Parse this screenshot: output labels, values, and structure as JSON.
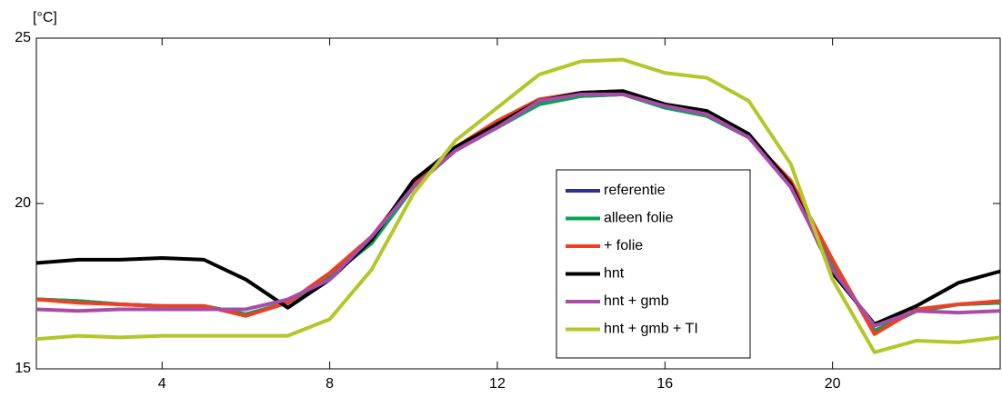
{
  "chart_data": {
    "type": "line",
    "y_label": "[°C]",
    "x": [
      1,
      2,
      3,
      4,
      5,
      6,
      7,
      8,
      9,
      10,
      11,
      12,
      13,
      14,
      15,
      16,
      17,
      18,
      19,
      20,
      21,
      22,
      23,
      24
    ],
    "xlim": [
      1,
      24
    ],
    "xticks": [
      4,
      8,
      12,
      16,
      20
    ],
    "ylim": [
      15,
      25
    ],
    "yticks": [
      15,
      20,
      25
    ],
    "grid": false,
    "legend": "lower-center",
    "series": [
      {
        "name": "referentie",
        "color": "#2e3192",
        "values": [
          17.1,
          17.05,
          16.95,
          16.9,
          16.9,
          16.65,
          17.0,
          17.8,
          18.8,
          20.5,
          21.6,
          22.3,
          23.0,
          23.25,
          23.3,
          22.9,
          22.65,
          22.0,
          20.6,
          18.2,
          16.15,
          16.75,
          16.95,
          17.0
        ]
      },
      {
        "name": "alleen folie",
        "color": "#00a651",
        "values": [
          17.1,
          17.05,
          16.95,
          16.9,
          16.9,
          16.65,
          17.0,
          17.8,
          18.8,
          20.5,
          21.6,
          22.3,
          23.0,
          23.25,
          23.3,
          22.9,
          22.65,
          22.0,
          20.6,
          18.2,
          16.15,
          16.75,
          16.95,
          17.0
        ]
      },
      {
        "name": "+ folie",
        "color": "#ee4023",
        "values": [
          17.1,
          17.0,
          16.95,
          16.9,
          16.9,
          16.6,
          17.0,
          17.9,
          19.0,
          20.6,
          21.7,
          22.5,
          23.15,
          23.35,
          23.4,
          23.0,
          22.7,
          22.0,
          20.7,
          18.3,
          16.05,
          16.8,
          16.95,
          17.05
        ]
      },
      {
        "name": "hnt",
        "color": "#000000",
        "values": [
          18.2,
          18.3,
          18.3,
          18.35,
          18.3,
          17.7,
          16.85,
          17.7,
          18.9,
          20.7,
          21.7,
          22.4,
          23.1,
          23.35,
          23.4,
          23.0,
          22.8,
          22.1,
          20.6,
          17.9,
          16.35,
          16.9,
          17.6,
          17.95
        ]
      },
      {
        "name": "hnt + gmb",
        "color": "#a94ca8",
        "values": [
          16.8,
          16.75,
          16.8,
          16.8,
          16.8,
          16.8,
          17.1,
          17.7,
          19.0,
          20.5,
          21.6,
          22.3,
          23.1,
          23.3,
          23.3,
          22.95,
          22.7,
          22.0,
          20.5,
          18.0,
          16.3,
          16.75,
          16.7,
          16.75
        ]
      },
      {
        "name": "hnt + gmb + TI",
        "color": "#b5c629",
        "values": [
          15.9,
          16.0,
          15.95,
          16.0,
          16.0,
          16.0,
          16.0,
          16.5,
          18.0,
          20.3,
          21.9,
          22.9,
          23.9,
          24.3,
          24.35,
          23.95,
          23.8,
          23.1,
          21.2,
          17.7,
          15.5,
          15.85,
          15.8,
          15.95
        ]
      }
    ]
  }
}
